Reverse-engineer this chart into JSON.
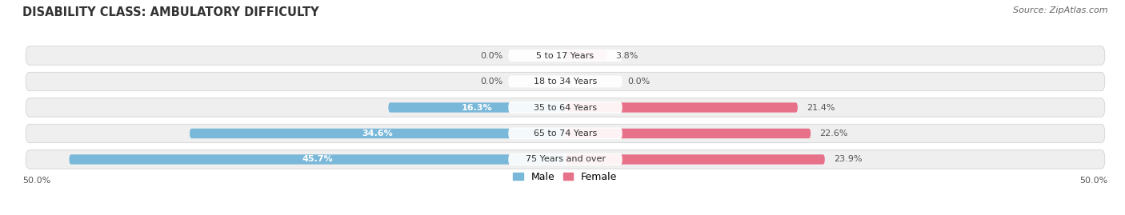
{
  "title": "DISABILITY CLASS: AMBULATORY DIFFICULTY",
  "source": "Source: ZipAtlas.com",
  "categories": [
    "5 to 17 Years",
    "18 to 34 Years",
    "35 to 64 Years",
    "65 to 74 Years",
    "75 Years and over"
  ],
  "male_values": [
    0.0,
    0.0,
    16.3,
    34.6,
    45.7
  ],
  "female_values": [
    3.8,
    0.0,
    21.4,
    22.6,
    23.9
  ],
  "male_color": "#7ab8d9",
  "female_color": "#e8718a",
  "female_color_light": "#f0a0b8",
  "row_bg_color": "#e8e8e8",
  "axis_max": 50.0,
  "label_color": "#555555",
  "title_color": "#333333",
  "title_fontsize": 10.5,
  "label_fontsize": 8,
  "cat_fontsize": 8,
  "source_fontsize": 8,
  "legend_fontsize": 9
}
